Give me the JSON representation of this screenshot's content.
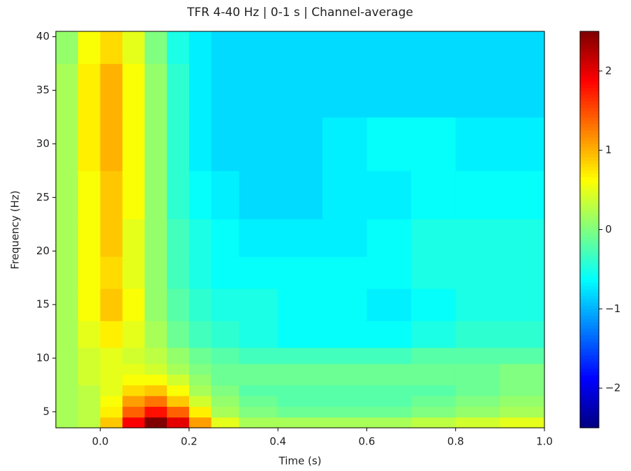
{
  "chart_data": {
    "type": "heatmap",
    "title": "TFR 4-40 Hz | 0-1 s | Channel-average",
    "xlabel": "Time (s)",
    "ylabel": "Frequency (Hz)",
    "x": [
      -0.075,
      -0.025,
      0.025,
      0.075,
      0.125,
      0.175,
      0.225,
      0.275,
      0.35,
      0.45,
      0.55,
      0.65,
      0.75,
      0.85,
      0.95
    ],
    "y": [
      4,
      5,
      6,
      7,
      8,
      9,
      10,
      12,
      15,
      18,
      21,
      25,
      30,
      35,
      40
    ],
    "z": [
      [
        0.2,
        0.3,
        0.9,
        1.9,
        2.5,
        2.0,
        1.1,
        0.5,
        0.2,
        0.2,
        0.2,
        0.2,
        0.3,
        0.4,
        0.5
      ],
      [
        0.2,
        0.3,
        0.7,
        1.4,
        1.8,
        1.4,
        0.7,
        0.2,
        0.0,
        -0.1,
        -0.1,
        -0.1,
        0.0,
        0.1,
        0.2
      ],
      [
        0.2,
        0.3,
        0.6,
        1.1,
        1.3,
        0.9,
        0.4,
        0.1,
        -0.1,
        -0.2,
        -0.2,
        -0.2,
        -0.1,
        0.0,
        0.1
      ],
      [
        0.2,
        0.3,
        0.5,
        0.8,
        0.9,
        0.6,
        0.2,
        0.0,
        -0.2,
        -0.2,
        -0.2,
        -0.2,
        -0.2,
        -0.1,
        0.0
      ],
      [
        0.2,
        0.4,
        0.5,
        0.6,
        0.6,
        0.4,
        0.1,
        -0.1,
        -0.1,
        -0.1,
        -0.1,
        -0.1,
        -0.1,
        -0.1,
        0.0
      ],
      [
        0.2,
        0.4,
        0.5,
        0.5,
        0.4,
        0.2,
        0.0,
        -0.1,
        -0.1,
        -0.1,
        -0.1,
        -0.1,
        -0.1,
        -0.1,
        0.0
      ],
      [
        0.2,
        0.4,
        0.5,
        0.4,
        0.3,
        0.1,
        -0.1,
        -0.2,
        -0.3,
        -0.3,
        -0.3,
        -0.3,
        -0.2,
        -0.2,
        -0.2
      ],
      [
        0.2,
        0.5,
        0.7,
        0.5,
        0.2,
        -0.1,
        -0.3,
        -0.4,
        -0.5,
        -0.6,
        -0.6,
        -0.6,
        -0.5,
        -0.4,
        -0.4
      ],
      [
        0.2,
        0.6,
        0.9,
        0.6,
        0.1,
        -0.2,
        -0.4,
        -0.5,
        -0.5,
        -0.6,
        -0.6,
        -0.7,
        -0.6,
        -0.5,
        -0.5
      ],
      [
        0.2,
        0.6,
        0.8,
        0.5,
        0.1,
        -0.3,
        -0.5,
        -0.6,
        -0.6,
        -0.6,
        -0.6,
        -0.6,
        -0.5,
        -0.5,
        -0.5
      ],
      [
        0.2,
        0.6,
        0.9,
        0.5,
        0.1,
        -0.3,
        -0.5,
        -0.6,
        -0.7,
        -0.7,
        -0.7,
        -0.6,
        -0.5,
        -0.5,
        -0.5
      ],
      [
        0.2,
        0.6,
        0.9,
        0.6,
        0.1,
        -0.4,
        -0.6,
        -0.7,
        -0.8,
        -0.8,
        -0.7,
        -0.7,
        -0.6,
        -0.6,
        -0.6
      ],
      [
        0.2,
        0.7,
        1.0,
        0.6,
        0.1,
        -0.4,
        -0.7,
        -0.8,
        -0.8,
        -0.8,
        -0.7,
        -0.6,
        -0.6,
        -0.7,
        -0.7
      ],
      [
        0.2,
        0.7,
        1.0,
        0.6,
        0.1,
        -0.4,
        -0.7,
        -0.8,
        -0.8,
        -0.8,
        -0.8,
        -0.8,
        -0.8,
        -0.8,
        -0.8
      ],
      [
        0.1,
        0.6,
        0.8,
        0.5,
        0.0,
        -0.5,
        -0.7,
        -0.8,
        -0.8,
        -0.8,
        -0.8,
        -0.8,
        -0.8,
        -0.8,
        -0.8
      ]
    ],
    "colormap": "jet",
    "xlim": [
      -0.1,
      1.0
    ],
    "xticks": [
      {
        "value": 0,
        "label": "0.0"
      },
      0.2,
      0.4,
      0.6,
      0.8,
      {
        "value": 1,
        "label": "1.0"
      }
    ],
    "ylim": [
      3.5,
      40.5
    ],
    "yticks": [
      5,
      10,
      15,
      20,
      25,
      30,
      35,
      40
    ],
    "clim": [
      -2.5,
      2.5
    ],
    "cticks": [
      {
        "value": -2,
        "label": "−2"
      },
      {
        "value": -1,
        "label": "−1"
      },
      0,
      1,
      2
    ]
  }
}
